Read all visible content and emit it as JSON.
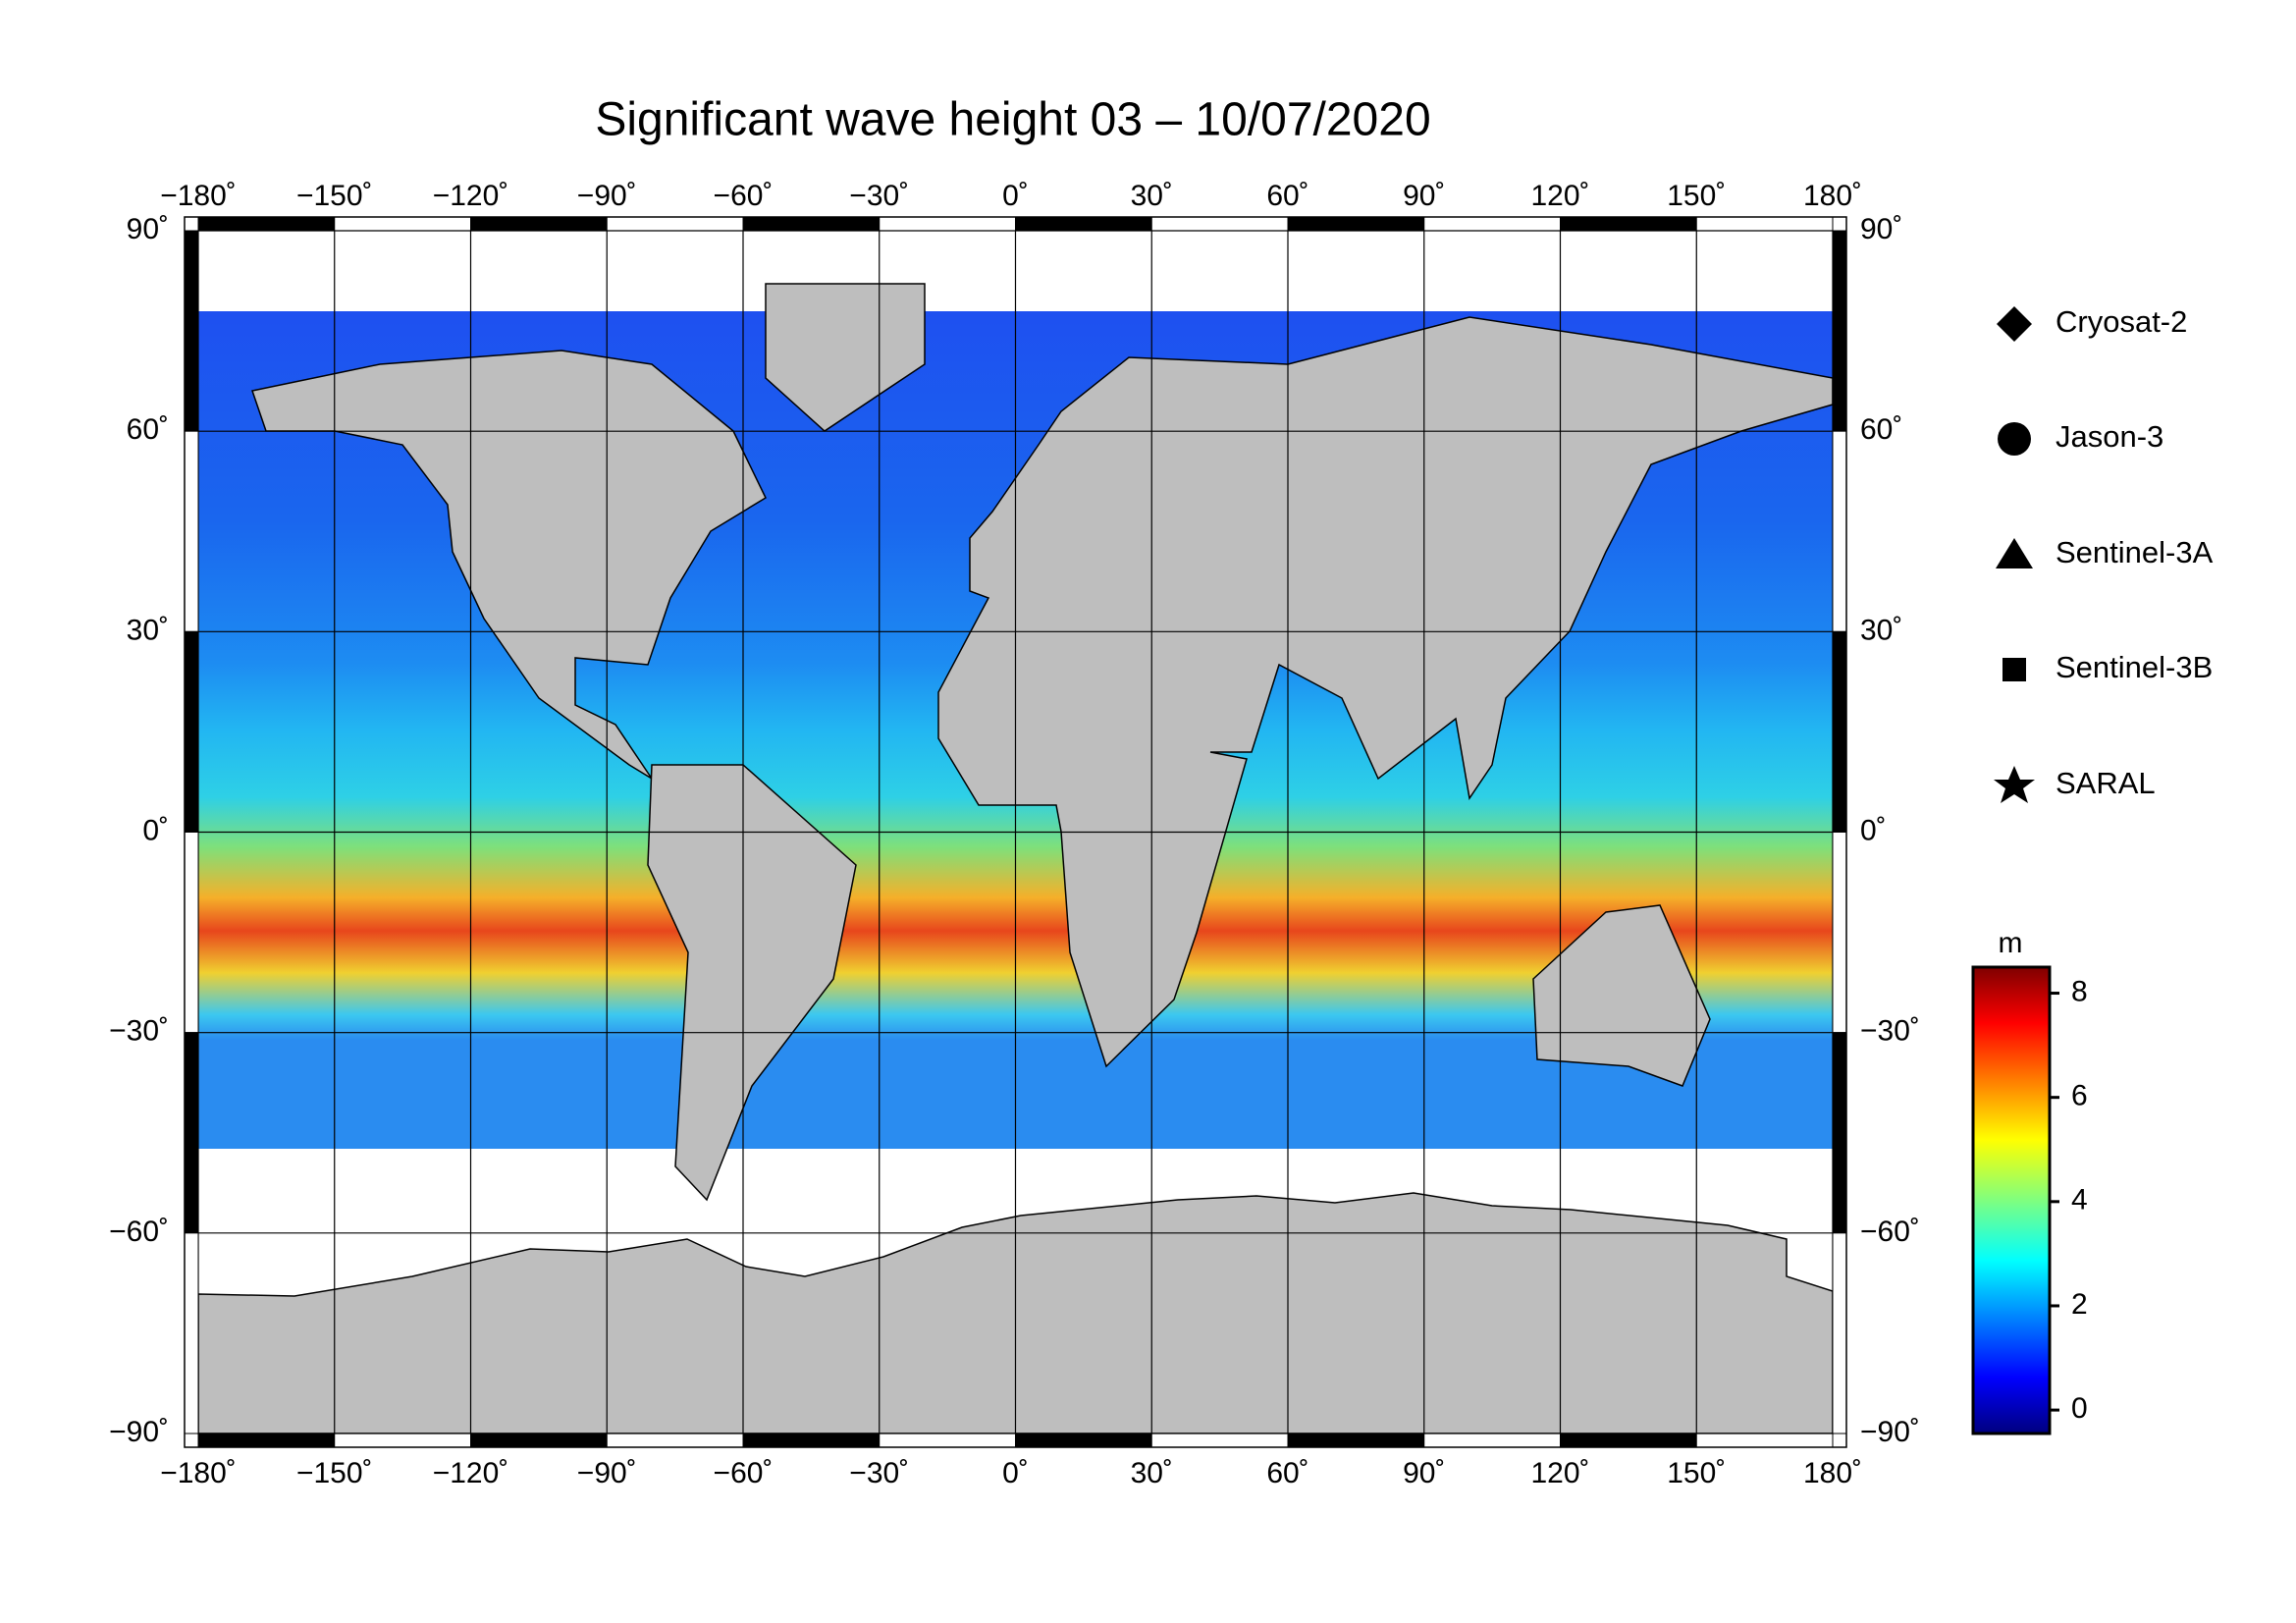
{
  "title": "Significant wave height 03 – 10/07/2020",
  "map": {
    "lon_ticks": [
      {
        "value": -180,
        "label": "−180˚"
      },
      {
        "value": -150,
        "label": "−150˚"
      },
      {
        "value": -120,
        "label": "−120˚"
      },
      {
        "value": -90,
        "label": "−90˚"
      },
      {
        "value": -60,
        "label": "−60˚"
      },
      {
        "value": -30,
        "label": "−30˚"
      },
      {
        "value": 0,
        "label": "0˚"
      },
      {
        "value": 30,
        "label": "30˚"
      },
      {
        "value": 60,
        "label": "60˚"
      },
      {
        "value": 90,
        "label": "90˚"
      },
      {
        "value": 120,
        "label": "120˚"
      },
      {
        "value": 150,
        "label": "150˚"
      },
      {
        "value": 180,
        "label": "180˚"
      }
    ],
    "lat_ticks": [
      {
        "value": 90,
        "label": "90˚"
      },
      {
        "value": 60,
        "label": "60˚"
      },
      {
        "value": 30,
        "label": "30˚"
      },
      {
        "value": 0,
        "label": "0˚"
      },
      {
        "value": -30,
        "label": "−30˚"
      },
      {
        "value": -60,
        "label": "−60˚"
      },
      {
        "value": -90,
        "label": "−90˚"
      }
    ]
  },
  "legend": [
    "Cryosat-2",
    "Jason-3",
    "Sentinel-3A",
    "Sentinel-3B",
    "SARAL"
  ],
  "colorbar": {
    "label": "m",
    "range": [
      -0.45,
      8.5
    ],
    "ticks": [
      0,
      2,
      4,
      6,
      8
    ]
  }
}
